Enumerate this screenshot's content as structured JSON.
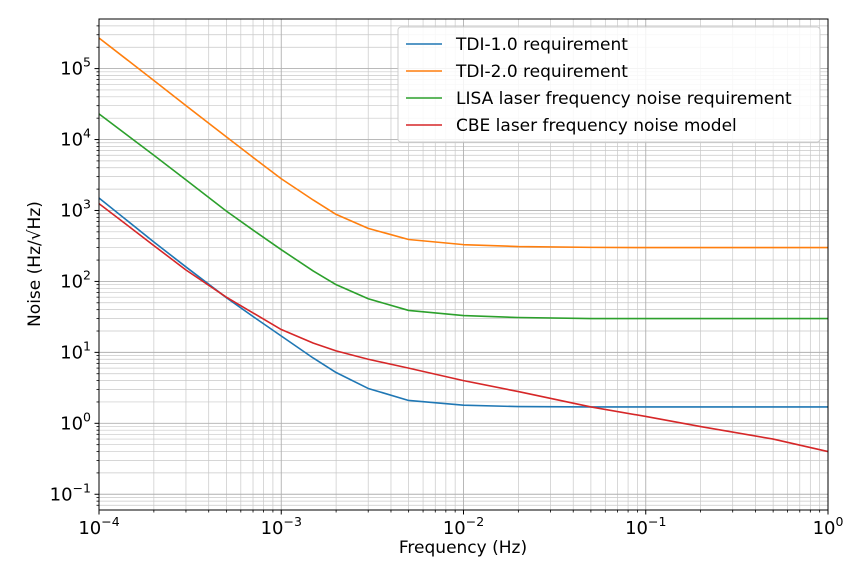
{
  "chart_data": {
    "type": "line",
    "xscale": "log",
    "yscale": "log",
    "xlim": [
      0.0001,
      1
    ],
    "ylim": [
      0.06,
      500000
    ],
    "xlabel": "Frequency (Hz)",
    "ylabel": "Noise (Hz/√Hz)",
    "grid": "major and minor",
    "legend_position": "top-right",
    "x_ticks": [
      {
        "value": 0.0001,
        "base": "10",
        "exp": "−4"
      },
      {
        "value": 0.001,
        "base": "10",
        "exp": "−3"
      },
      {
        "value": 0.01,
        "base": "10",
        "exp": "−2"
      },
      {
        "value": 0.1,
        "base": "10",
        "exp": "−1"
      },
      {
        "value": 1,
        "base": "10",
        "exp": "0"
      }
    ],
    "y_ticks": [
      {
        "value": 0.1,
        "base": "10",
        "exp": "−1"
      },
      {
        "value": 1,
        "base": "10",
        "exp": "0"
      },
      {
        "value": 10,
        "base": "10",
        "exp": "1"
      },
      {
        "value": 100,
        "base": "10",
        "exp": "2"
      },
      {
        "value": 1000,
        "base": "10",
        "exp": "3"
      },
      {
        "value": 10000,
        "base": "10",
        "exp": "4"
      },
      {
        "value": 100000,
        "base": "10",
        "exp": "5"
      }
    ],
    "series": [
      {
        "name": "TDI-1.0 requirement",
        "color": "#1f77b4",
        "x": [
          0.0001,
          0.0002,
          0.0003,
          0.0005,
          0.0007,
          0.001,
          0.0015,
          0.002,
          0.003,
          0.005,
          0.01,
          0.02,
          0.05,
          0.1,
          0.2,
          0.5,
          1
        ],
        "y": [
          1500,
          360,
          160,
          59,
          32,
          17,
          8.3,
          5.2,
          3.1,
          2.1,
          1.8,
          1.72,
          1.7,
          1.7,
          1.7,
          1.7,
          1.7
        ]
      },
      {
        "name": "TDI-2.0 requirement",
        "color": "#ff7f0e",
        "x": [
          0.0001,
          0.0002,
          0.0003,
          0.0005,
          0.0007,
          0.001,
          0.0015,
          0.002,
          0.003,
          0.005,
          0.01,
          0.02,
          0.05,
          0.1,
          0.2,
          0.5,
          1
        ],
        "y": [
          270000,
          68000,
          30000,
          10900,
          5600,
          2800,
          1400,
          880,
          560,
          390,
          330,
          310,
          302,
          300,
          300,
          300,
          300
        ]
      },
      {
        "name": "LISA laser frequency noise requirement",
        "color": "#2ca02c",
        "x": [
          0.0001,
          0.0002,
          0.0003,
          0.0005,
          0.0007,
          0.001,
          0.0015,
          0.002,
          0.003,
          0.005,
          0.01,
          0.02,
          0.05,
          0.1,
          0.2,
          0.5,
          1
        ],
        "y": [
          23000,
          6000,
          2700,
          980,
          530,
          280,
          140,
          90,
          57,
          39,
          33,
          31,
          30,
          30,
          30,
          30,
          30
        ]
      },
      {
        "name": "CBE laser frequency noise model",
        "color": "#d62728",
        "x": [
          0.0001,
          0.0002,
          0.0003,
          0.0005,
          0.0007,
          0.001,
          0.0015,
          0.002,
          0.003,
          0.005,
          0.01,
          0.02,
          0.05,
          0.1,
          0.2,
          0.5,
          1
        ],
        "y": [
          1250,
          320,
          145,
          60,
          36,
          21,
          13.5,
          10.5,
          8.0,
          6.0,
          4.0,
          2.8,
          1.7,
          1.25,
          0.9,
          0.6,
          0.4
        ]
      }
    ]
  }
}
